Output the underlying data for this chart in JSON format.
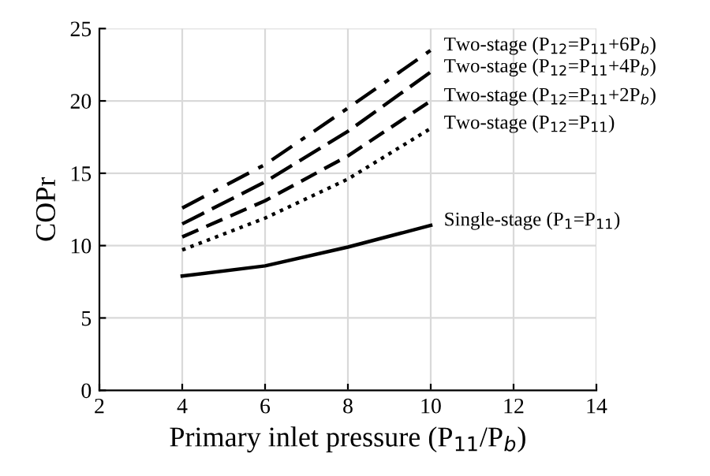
{
  "chart_data": {
    "type": "line",
    "xlabel": "Primary inlet pressure (P$_{11}$/P$_{b}$)",
    "ylabel": "COPr",
    "x": [
      4,
      6,
      8,
      10
    ],
    "series": [
      {
        "name": "Two-stage (P$_{12}$=P$_{11}$+6P$_{b}$)",
        "color": "#000000",
        "line_style": "dashdot",
        "values": [
          12.6,
          15.6,
          19.5,
          23.5
        ]
      },
      {
        "name": "Two-stage (P$_{12}$=P$_{11}$+4P$_{b}$)",
        "color": "#000000",
        "line_style": "longdash",
        "values": [
          11.5,
          14.4,
          17.9,
          22.0
        ]
      },
      {
        "name": "Two-stage (P$_{12}$=P$_{11}$+2P$_{b}$)",
        "color": "#000000",
        "line_style": "dashed",
        "values": [
          10.6,
          13.1,
          16.2,
          20.0
        ]
      },
      {
        "name": "Two-stage (P$_{12}$=P$_{11}$)",
        "color": "#000000",
        "line_style": "dotted",
        "values": [
          9.7,
          11.9,
          14.6,
          18.1
        ]
      },
      {
        "name": "Single-stage (P$_{1}$=P$_{11}$)",
        "color": "#000000",
        "line_style": "solid",
        "values": [
          7.9,
          8.6,
          9.9,
          11.4
        ]
      }
    ],
    "xlim": [
      2,
      14
    ],
    "xticks": [
      2,
      4,
      6,
      8,
      10,
      12,
      14
    ],
    "ylim": [
      0,
      25
    ],
    "yticks": [
      0,
      5,
      10,
      15,
      20,
      25
    ],
    "grid": true,
    "legend": false,
    "marker": "none"
  }
}
